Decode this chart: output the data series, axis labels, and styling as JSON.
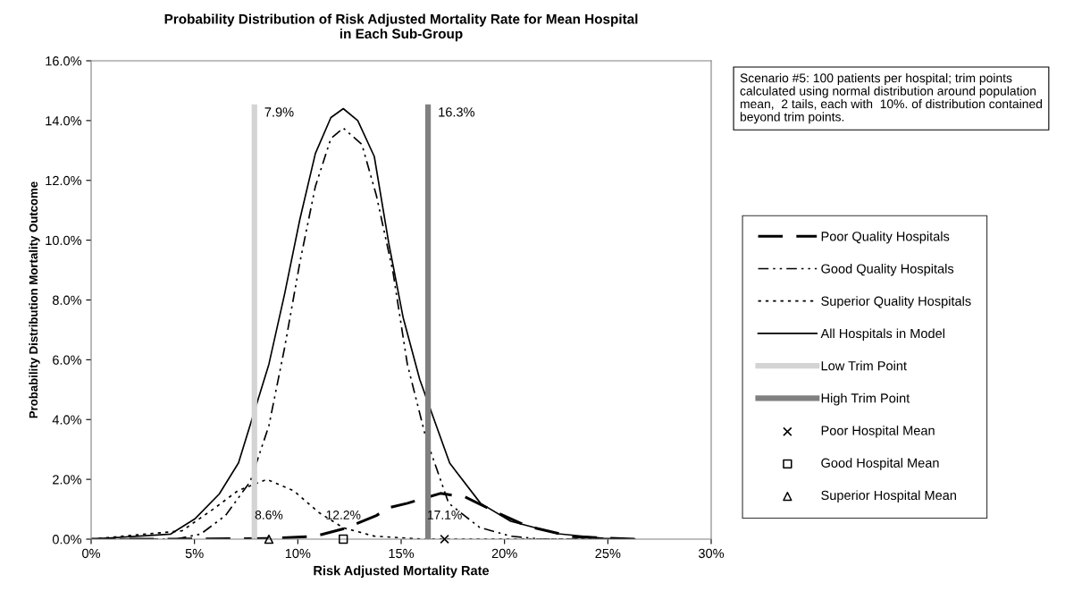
{
  "chart_data": {
    "type": "line",
    "title": "Probability Distribution of Risk Adjusted Mortality Rate for Mean Hospital\nin Each Sub-Group",
    "xlabel": "Risk Adjusted Mortality Rate",
    "ylabel": "Probability Distribution Mortality Outcome",
    "xlim": [
      0,
      30
    ],
    "xticks": [
      {
        "value": 0,
        "label": "0%"
      },
      {
        "value": 5,
        "label": "5%"
      },
      {
        "value": 10,
        "label": "10%"
      },
      {
        "value": 15,
        "label": "15%"
      },
      {
        "value": 20,
        "label": "20%"
      },
      {
        "value": 25,
        "label": "25%"
      },
      {
        "value": 30,
        "label": "30%"
      }
    ],
    "ylim": [
      0,
      16
    ],
    "yticks": [
      {
        "value": 0,
        "label": "0.0%"
      },
      {
        "value": 2,
        "label": "2.0%"
      },
      {
        "value": 4,
        "label": "4.0%"
      },
      {
        "value": 6,
        "label": "6.0%"
      },
      {
        "value": 8,
        "label": "8.0%"
      },
      {
        "value": 10,
        "label": "10.0%"
      },
      {
        "value": 12,
        "label": "12.0%"
      },
      {
        "value": 14,
        "label": "14.0%"
      },
      {
        "value": 16,
        "label": "16.0%"
      }
    ],
    "grid": false,
    "legend": "right",
    "series": [
      {
        "name": "Poor Quality Hospitals",
        "color": "#000000",
        "line_style": "dashed",
        "x": [
          0,
          4,
          8.6,
          10.85,
          12.3,
          13.8,
          14.4,
          15.3,
          16.9,
          18.1,
          19.6,
          21.1,
          23.3,
          26.3
        ],
        "values": [
          0,
          0,
          0.02,
          0.1,
          0.36,
          0.79,
          1.05,
          1.2,
          1.53,
          1.41,
          0.9,
          0.43,
          0.08,
          0
        ]
      },
      {
        "name": "Good Quality Hospitals",
        "color": "#000000",
        "line_style": "dashdot",
        "x": [
          0,
          4.1,
          5.3,
          6.5,
          7.7,
          8.6,
          9.36,
          10.1,
          10.85,
          11.6,
          12.2,
          13.1,
          13.8,
          14.6,
          15.3,
          16.2,
          17.3,
          18.8,
          20.3,
          21.8,
          26.3
        ],
        "values": [
          0,
          0,
          0.17,
          0.79,
          1.93,
          3.79,
          6.4,
          9.26,
          11.8,
          13.4,
          13.75,
          13.2,
          11.5,
          8.95,
          5.85,
          3.38,
          1.2,
          0.39,
          0.1,
          0,
          0
        ]
      },
      {
        "name": "Superior Quality Hospitals",
        "color": "#000000",
        "line_style": "dotted",
        "x": [
          0,
          4.4,
          5.9,
          7.1,
          8.5,
          9.8,
          11.0,
          12.2,
          13.7,
          16.1,
          26.3
        ],
        "values": [
          0,
          0.28,
          1.0,
          1.62,
          2.0,
          1.62,
          0.9,
          0.38,
          0.1,
          0,
          0
        ]
      },
      {
        "name": "All Hospitals in Model",
        "color": "#000000",
        "line_style": "solid",
        "x": [
          0,
          3.85,
          5.04,
          6.2,
          7.13,
          8.6,
          9.36,
          10.1,
          10.85,
          11.6,
          12.2,
          12.9,
          13.7,
          14.4,
          15.1,
          15.9,
          17.35,
          18.84,
          20.3,
          22.6,
          24.8,
          26.3
        ],
        "values": [
          0,
          0.17,
          0.69,
          1.51,
          2.55,
          5.85,
          8.2,
          10.7,
          12.9,
          14.1,
          14.4,
          14.0,
          12.8,
          9.9,
          7.4,
          5.34,
          2.54,
          1.2,
          0.6,
          0.18,
          0.03,
          0
        ]
      },
      {
        "name": "Low Trim Point",
        "color": "#d4d4d4",
        "line_style": "solid",
        "x": [
          7.9,
          7.9
        ],
        "values": [
          0,
          14.45
        ]
      },
      {
        "name": "High Trim Point",
        "color": "#808080",
        "line_style": "solid",
        "x": [
          16.3,
          16.3
        ],
        "values": [
          0,
          14.45
        ]
      },
      {
        "name": "Poor Hospital Mean",
        "type": "scatter",
        "marker": "cross",
        "color": "#000000",
        "x": [
          17.1
        ],
        "values": [
          0
        ]
      },
      {
        "name": "Good Hospital Mean",
        "type": "scatter",
        "marker": "square",
        "color": "#000000",
        "x": [
          12.2
        ],
        "values": [
          0
        ]
      },
      {
        "name": "Superior Hospital Mean",
        "type": "scatter",
        "marker": "triangle",
        "color": "#000000",
        "x": [
          8.6
        ],
        "values": [
          0
        ]
      }
    ],
    "annotations": [
      {
        "text": "7.9%",
        "x": 7.9,
        "y": 14.45
      },
      {
        "text": "16.3%",
        "x": 16.3,
        "y": 14.45
      },
      {
        "text": "8.6%",
        "x": 8.6,
        "y": 0
      },
      {
        "text": "12.2%",
        "x": 12.2,
        "y": 0
      },
      {
        "text": "17.1%",
        "x": 17.1,
        "y": 0
      },
      "Scenario #5: 100 patients per hospital; trim points calculated using normal distribution around population mean,  2 tails, each with  10%. of distribution contained beyond trim points."
    ]
  }
}
